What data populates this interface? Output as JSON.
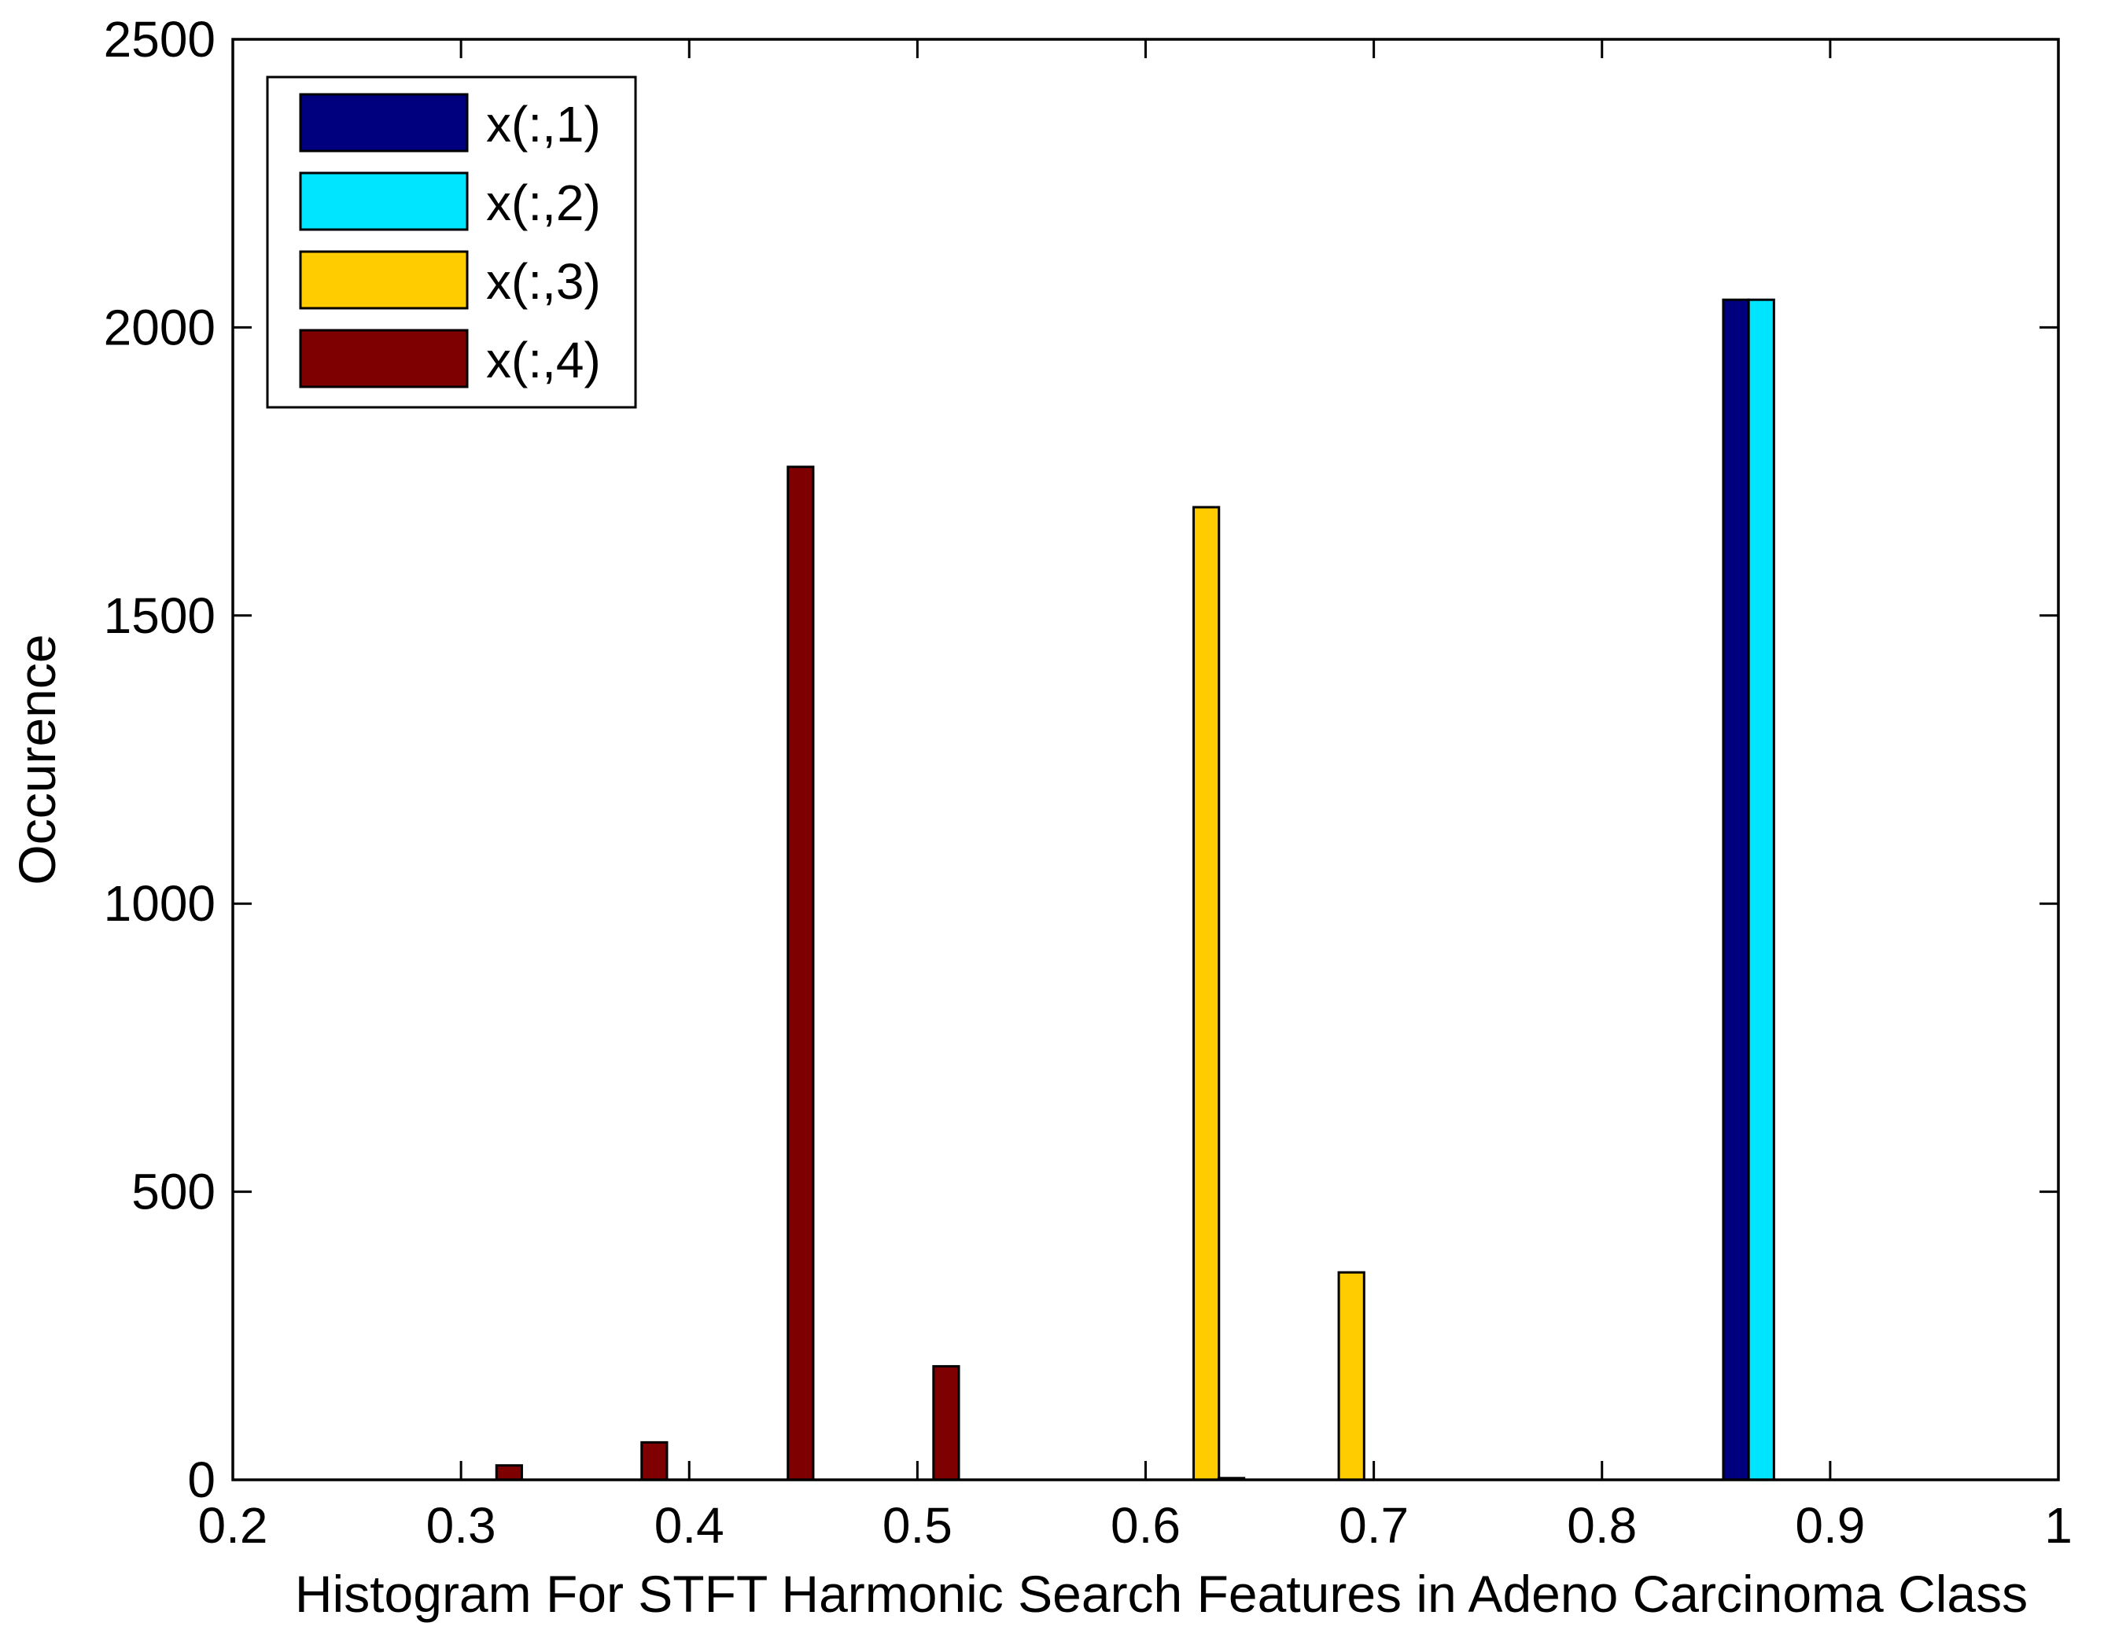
{
  "chart_data": {
    "type": "bar",
    "title": "",
    "xlabel": "Histogram For STFT Harmonic Search Features in Adeno Carcinoma Class",
    "ylabel": "Occurence",
    "xlim": [
      0.2,
      1
    ],
    "ylim": [
      0,
      2500
    ],
    "xticks": [
      "0.2",
      "0.3",
      "0.4",
      "0.5",
      "0.6",
      "0.7",
      "0.8",
      "0.9",
      "1"
    ],
    "yticks": [
      "0",
      "500",
      "1000",
      "1500",
      "2000",
      "2500"
    ],
    "grid": false,
    "legend_position": "top-left",
    "bin_width": 0.0111,
    "series": [
      {
        "name": "x(:,1)",
        "color": "#00007F",
        "points": [
          {
            "x": 0.8587,
            "y": 2048
          }
        ]
      },
      {
        "name": "x(:,2)",
        "color": "#00E5FF",
        "points": [
          {
            "x": 0.8698,
            "y": 2048
          }
        ]
      },
      {
        "name": "x(:,3)",
        "color": "#FFCC00",
        "points": [
          {
            "x": 0.6266,
            "y": 1688
          },
          {
            "x": 0.6902,
            "y": 360
          }
        ]
      },
      {
        "name": "x(:,4)",
        "color": "#7F0000",
        "points": [
          {
            "x": 0.3211,
            "y": 25
          },
          {
            "x": 0.3847,
            "y": 65
          },
          {
            "x": 0.4488,
            "y": 1758
          },
          {
            "x": 0.5126,
            "y": 197
          },
          {
            "x": 0.6376,
            "y": 3
          }
        ]
      }
    ]
  }
}
